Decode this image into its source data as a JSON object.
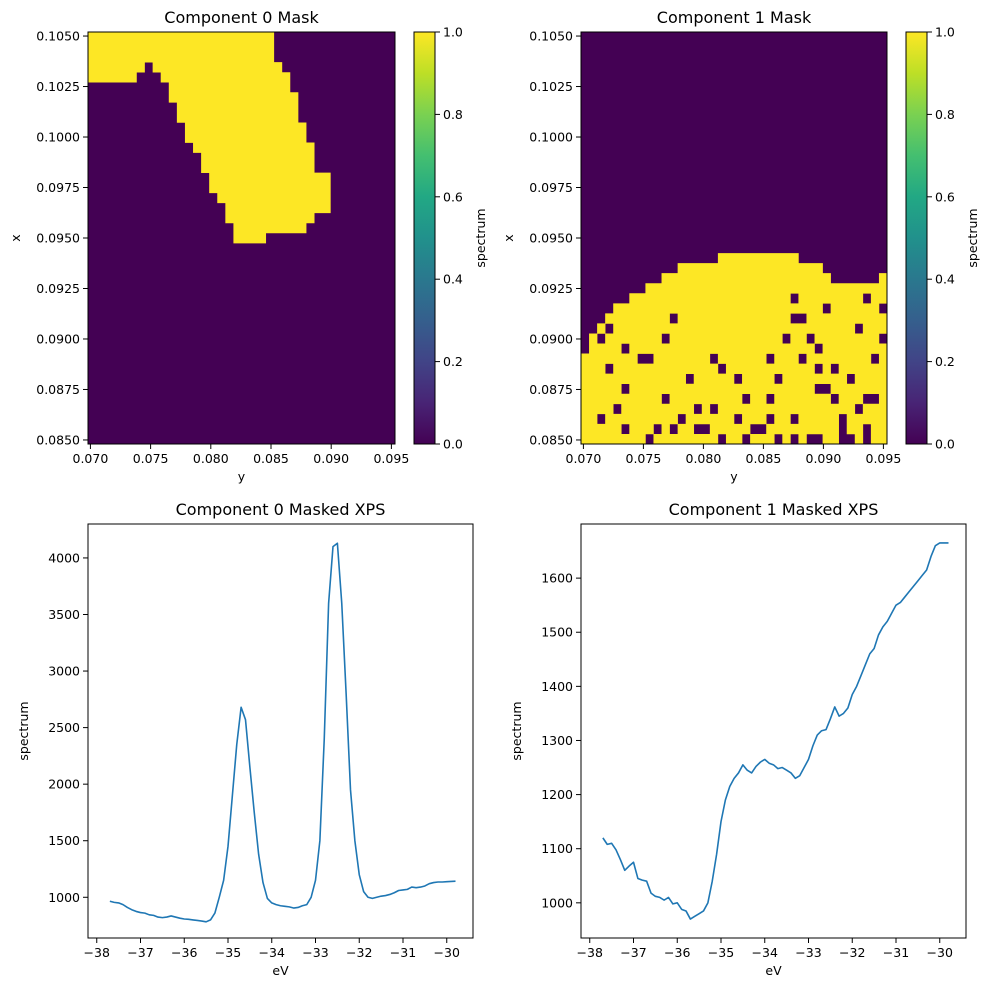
{
  "chart_data": [
    {
      "type": "heatmap",
      "title": "Component 0 Mask",
      "xlabel": "y",
      "ylabel": "x",
      "colorbar_label": "spectrum",
      "colormap": "viridis",
      "xlim": [
        0.0698,
        0.0953
      ],
      "ylim": [
        0.0848,
        0.1052
      ],
      "xticks": [
        "0.070",
        "0.075",
        "0.080",
        "0.085",
        "0.090",
        "0.095"
      ],
      "yticks": [
        "0.0850",
        "0.0875",
        "0.0900",
        "0.0925",
        "0.0950",
        "0.0975",
        "0.1000",
        "0.1025",
        "0.1050"
      ],
      "cbar_ticks": [
        "0.0",
        "0.2",
        "0.4",
        "0.6",
        "0.8",
        "1.0"
      ],
      "vmin": 0,
      "vmax": 1,
      "grid_x": [
        0.0698,
        0.0953,
        38
      ],
      "grid_y": [
        0.0848,
        0.1052,
        41
      ],
      "mask_polygon": [
        [
          0.0698,
          0.1052
        ],
        [
          0.0852,
          0.1052
        ],
        [
          0.0856,
          0.1036
        ],
        [
          0.0867,
          0.1027
        ],
        [
          0.0871,
          0.1014
        ],
        [
          0.0877,
          0.1007
        ],
        [
          0.0883,
          0.0998
        ],
        [
          0.0886,
          0.0985
        ],
        [
          0.09,
          0.098
        ],
        [
          0.09,
          0.0966
        ],
        [
          0.0888,
          0.096
        ],
        [
          0.0878,
          0.0955
        ],
        [
          0.0866,
          0.0953
        ],
        [
          0.0855,
          0.0951
        ],
        [
          0.0838,
          0.0949
        ],
        [
          0.0826,
          0.0949
        ],
        [
          0.082,
          0.095
        ],
        [
          0.0815,
          0.0959
        ],
        [
          0.0809,
          0.0966
        ],
        [
          0.08,
          0.0976
        ],
        [
          0.0793,
          0.0984
        ],
        [
          0.0787,
          0.0992
        ],
        [
          0.078,
          0.1
        ],
        [
          0.0773,
          0.1011
        ],
        [
          0.0765,
          0.1021
        ],
        [
          0.0758,
          0.1033
        ],
        [
          0.0748,
          0.1037
        ],
        [
          0.074,
          0.103
        ],
        [
          0.0733,
          0.1027
        ],
        [
          0.0698,
          0.1027
        ]
      ]
    },
    {
      "type": "heatmap",
      "title": "Component 1 Mask",
      "xlabel": "y",
      "ylabel": "x",
      "colorbar_label": "spectrum",
      "colormap": "viridis",
      "xlim": [
        0.0698,
        0.0953
      ],
      "ylim": [
        0.0848,
        0.1052
      ],
      "xticks": [
        "0.070",
        "0.075",
        "0.080",
        "0.085",
        "0.090",
        "0.095"
      ],
      "yticks": [
        "0.0850",
        "0.0875",
        "0.0900",
        "0.0925",
        "0.0950",
        "0.0975",
        "0.1000",
        "0.1025",
        "0.1050"
      ],
      "cbar_ticks": [
        "0.0",
        "0.2",
        "0.4",
        "0.6",
        "0.8",
        "1.0"
      ],
      "vmin": 0,
      "vmax": 1,
      "grid_x": [
        0.0698,
        0.0953,
        38
      ],
      "grid_y": [
        0.0848,
        0.1052,
        41
      ],
      "mask_boundary": [
        [
          0.0698,
          0.0896
        ],
        [
          0.0708,
          0.0903
        ],
        [
          0.0718,
          0.091
        ],
        [
          0.0728,
          0.0916
        ],
        [
          0.0738,
          0.092
        ],
        [
          0.0748,
          0.0924
        ],
        [
          0.0758,
          0.0927
        ],
        [
          0.0768,
          0.0932
        ],
        [
          0.0778,
          0.0936
        ],
        [
          0.0788,
          0.0937
        ],
        [
          0.0798,
          0.0937
        ],
        [
          0.0808,
          0.0939
        ],
        [
          0.0818,
          0.0941
        ],
        [
          0.0828,
          0.0943
        ],
        [
          0.0838,
          0.0944
        ],
        [
          0.0848,
          0.0945
        ],
        [
          0.0858,
          0.0943
        ],
        [
          0.0868,
          0.0941
        ],
        [
          0.0878,
          0.094
        ],
        [
          0.0888,
          0.0938
        ],
        [
          0.0898,
          0.0935
        ],
        [
          0.0908,
          0.093
        ],
        [
          0.0918,
          0.0927
        ],
        [
          0.0928,
          0.0925
        ],
        [
          0.0938,
          0.0928
        ],
        [
          0.0948,
          0.0931
        ],
        [
          0.0953,
          0.0932
        ]
      ],
      "mask_holes": [
        [
          0.0702,
          0.0893
        ],
        [
          0.0713,
          0.09
        ],
        [
          0.0723,
          0.0904
        ],
        [
          0.0733,
          0.0897
        ],
        [
          0.0723,
          0.0885
        ],
        [
          0.0738,
          0.0876
        ],
        [
          0.0748,
          0.0891
        ],
        [
          0.0758,
          0.0888
        ],
        [
          0.0768,
          0.0902
        ],
        [
          0.0778,
          0.0912
        ],
        [
          0.0788,
          0.088
        ],
        [
          0.0798,
          0.0863
        ],
        [
          0.0808,
          0.089
        ],
        [
          0.0818,
          0.0885
        ],
        [
          0.0828,
          0.0878
        ],
        [
          0.0838,
          0.0868
        ],
        [
          0.0843,
          0.0853
        ],
        [
          0.0853,
          0.0872
        ],
        [
          0.0858,
          0.0888
        ],
        [
          0.0868,
          0.09
        ],
        [
          0.0873,
          0.0908
        ],
        [
          0.0878,
          0.092
        ],
        [
          0.0883,
          0.0912
        ],
        [
          0.0888,
          0.0902
        ],
        [
          0.0893,
          0.0896
        ],
        [
          0.0898,
          0.0885
        ],
        [
          0.0903,
          0.0876
        ],
        [
          0.0908,
          0.0868
        ],
        [
          0.0913,
          0.086
        ],
        [
          0.0918,
          0.0856
        ],
        [
          0.0923,
          0.088
        ],
        [
          0.0928,
          0.0865
        ],
        [
          0.0933,
          0.0871
        ],
        [
          0.0938,
          0.0857
        ],
        [
          0.0943,
          0.0888
        ],
        [
          0.0948,
          0.0898
        ],
        [
          0.0943,
          0.0872
        ],
        [
          0.0938,
          0.0852
        ],
        [
          0.0923,
          0.0851
        ],
        [
          0.0913,
          0.0851
        ],
        [
          0.0898,
          0.0852
        ],
        [
          0.0888,
          0.0851
        ],
        [
          0.0878,
          0.0851
        ],
        [
          0.0863,
          0.0852
        ],
        [
          0.0848,
          0.0854
        ],
        [
          0.0833,
          0.0851
        ],
        [
          0.0818,
          0.0852
        ],
        [
          0.0803,
          0.0853
        ],
        [
          0.0793,
          0.0854
        ],
        [
          0.0778,
          0.0853
        ],
        [
          0.0763,
          0.0855
        ],
        [
          0.0753,
          0.0852
        ],
        [
          0.0733,
          0.0855
        ],
        [
          0.0713,
          0.086
        ],
        [
          0.0728,
          0.0867
        ],
        [
          0.0768,
          0.087
        ],
        [
          0.0783,
          0.0862
        ],
        [
          0.0808,
          0.0865
        ],
        [
          0.0828,
          0.0859
        ],
        [
          0.0853,
          0.0862
        ],
        [
          0.0873,
          0.086
        ],
        [
          0.0893,
          0.0875
        ],
        [
          0.0908,
          0.0887
        ],
        [
          0.0928,
          0.0907
        ],
        [
          0.0938,
          0.0918
        ],
        [
          0.0948,
          0.0913
        ],
        [
          0.0953,
          0.0925
        ],
        [
          0.0903,
          0.0916
        ],
        [
          0.0883,
          0.0892
        ],
        [
          0.0863,
          0.088
        ]
      ]
    },
    {
      "type": "line",
      "title": "Component 0 Masked XPS",
      "xlabel": "eV",
      "ylabel": "spectrum",
      "xlim": [
        -38.2,
        -29.4
      ],
      "ylim": [
        640,
        4300
      ],
      "xticks": [
        -38,
        -37,
        -36,
        -35,
        -34,
        -33,
        -32,
        -31,
        -30
      ],
      "yticks": [
        1000,
        1500,
        2000,
        2500,
        3000,
        3500,
        4000
      ],
      "series": [
        {
          "color": "#1f77b4",
          "x": [
            -37.7,
            -37.6,
            -37.5,
            -37.4,
            -37.3,
            -37.2,
            -37.1,
            -37.0,
            -36.9,
            -36.8,
            -36.7,
            -36.6,
            -36.5,
            -36.4,
            -36.3,
            -36.2,
            -36.1,
            -36.0,
            -35.9,
            -35.8,
            -35.7,
            -35.6,
            -35.5,
            -35.4,
            -35.3,
            -35.2,
            -35.1,
            -35.0,
            -34.9,
            -34.8,
            -34.7,
            -34.6,
            -34.5,
            -34.4,
            -34.3,
            -34.2,
            -34.1,
            -34.0,
            -33.9,
            -33.8,
            -33.7,
            -33.6,
            -33.5,
            -33.4,
            -33.3,
            -33.2,
            -33.1,
            -33.0,
            -32.9,
            -32.8,
            -32.7,
            -32.6,
            -32.5,
            -32.4,
            -32.3,
            -32.2,
            -32.1,
            -32.0,
            -31.9,
            -31.8,
            -31.7,
            -31.6,
            -31.5,
            -31.4,
            -31.3,
            -31.2,
            -31.1,
            -31.0,
            -30.9,
            -30.8,
            -30.7,
            -30.6,
            -30.5,
            -30.4,
            -30.3,
            -30.2,
            -30.1,
            -30.0,
            -29.9,
            -29.8
          ],
          "y": [
            965,
            955,
            950,
            935,
            910,
            890,
            875,
            865,
            860,
            845,
            840,
            825,
            820,
            825,
            835,
            825,
            815,
            808,
            805,
            800,
            795,
            790,
            783,
            800,
            860,
            1000,
            1150,
            1450,
            1900,
            2350,
            2680,
            2570,
            2150,
            1750,
            1380,
            1130,
            990,
            950,
            935,
            925,
            920,
            915,
            905,
            910,
            925,
            935,
            1000,
            1150,
            1500,
            2400,
            3600,
            4100,
            4130,
            3600,
            2800,
            1950,
            1500,
            1200,
            1050,
            1000,
            990,
            1000,
            1010,
            1015,
            1025,
            1040,
            1060,
            1065,
            1070,
            1090,
            1085,
            1090,
            1100,
            1120,
            1130,
            1135,
            1135,
            1138,
            1140,
            1142
          ]
        }
      ]
    },
    {
      "type": "line",
      "title": "Component 1 Masked XPS",
      "xlabel": "eV",
      "ylabel": "spectrum",
      "xlim": [
        -38.2,
        -29.4
      ],
      "ylim": [
        935,
        1700
      ],
      "xticks": [
        -38,
        -37,
        -36,
        -35,
        -34,
        -33,
        -32,
        -31,
        -30
      ],
      "yticks": [
        1000,
        1100,
        1200,
        1300,
        1400,
        1500,
        1600
      ],
      "series": [
        {
          "color": "#1f77b4",
          "x": [
            -37.7,
            -37.6,
            -37.5,
            -37.4,
            -37.3,
            -37.2,
            -37.1,
            -37.0,
            -36.9,
            -36.8,
            -36.7,
            -36.6,
            -36.5,
            -36.4,
            -36.3,
            -36.2,
            -36.1,
            -36.0,
            -35.9,
            -35.8,
            -35.7,
            -35.6,
            -35.5,
            -35.4,
            -35.3,
            -35.2,
            -35.1,
            -35.0,
            -34.9,
            -34.8,
            -34.7,
            -34.6,
            -34.5,
            -34.4,
            -34.3,
            -34.2,
            -34.1,
            -34.0,
            -33.9,
            -33.8,
            -33.7,
            -33.6,
            -33.5,
            -33.4,
            -33.3,
            -33.2,
            -33.1,
            -33.0,
            -32.9,
            -32.8,
            -32.7,
            -32.6,
            -32.5,
            -32.4,
            -32.3,
            -32.2,
            -32.1,
            -32.0,
            -31.9,
            -31.8,
            -31.7,
            -31.6,
            -31.5,
            -31.4,
            -31.3,
            -31.2,
            -31.1,
            -31.0,
            -30.9,
            -30.8,
            -30.7,
            -30.6,
            -30.5,
            -30.4,
            -30.3,
            -30.2,
            -30.1,
            -30.0,
            -29.9,
            -29.8
          ],
          "y": [
            1120,
            1108,
            1110,
            1098,
            1080,
            1060,
            1068,
            1075,
            1045,
            1042,
            1040,
            1018,
            1012,
            1010,
            1005,
            1010,
            998,
            1000,
            988,
            985,
            970,
            975,
            980,
            985,
            1000,
            1040,
            1090,
            1150,
            1190,
            1215,
            1230,
            1240,
            1255,
            1245,
            1240,
            1252,
            1260,
            1265,
            1258,
            1255,
            1248,
            1250,
            1245,
            1240,
            1230,
            1235,
            1250,
            1265,
            1290,
            1310,
            1318,
            1320,
            1340,
            1362,
            1345,
            1350,
            1360,
            1385,
            1400,
            1420,
            1440,
            1460,
            1470,
            1495,
            1510,
            1520,
            1535,
            1550,
            1555,
            1565,
            1575,
            1585,
            1595,
            1605,
            1615,
            1640,
            1660,
            1665,
            1665,
            1665
          ]
        }
      ]
    }
  ]
}
